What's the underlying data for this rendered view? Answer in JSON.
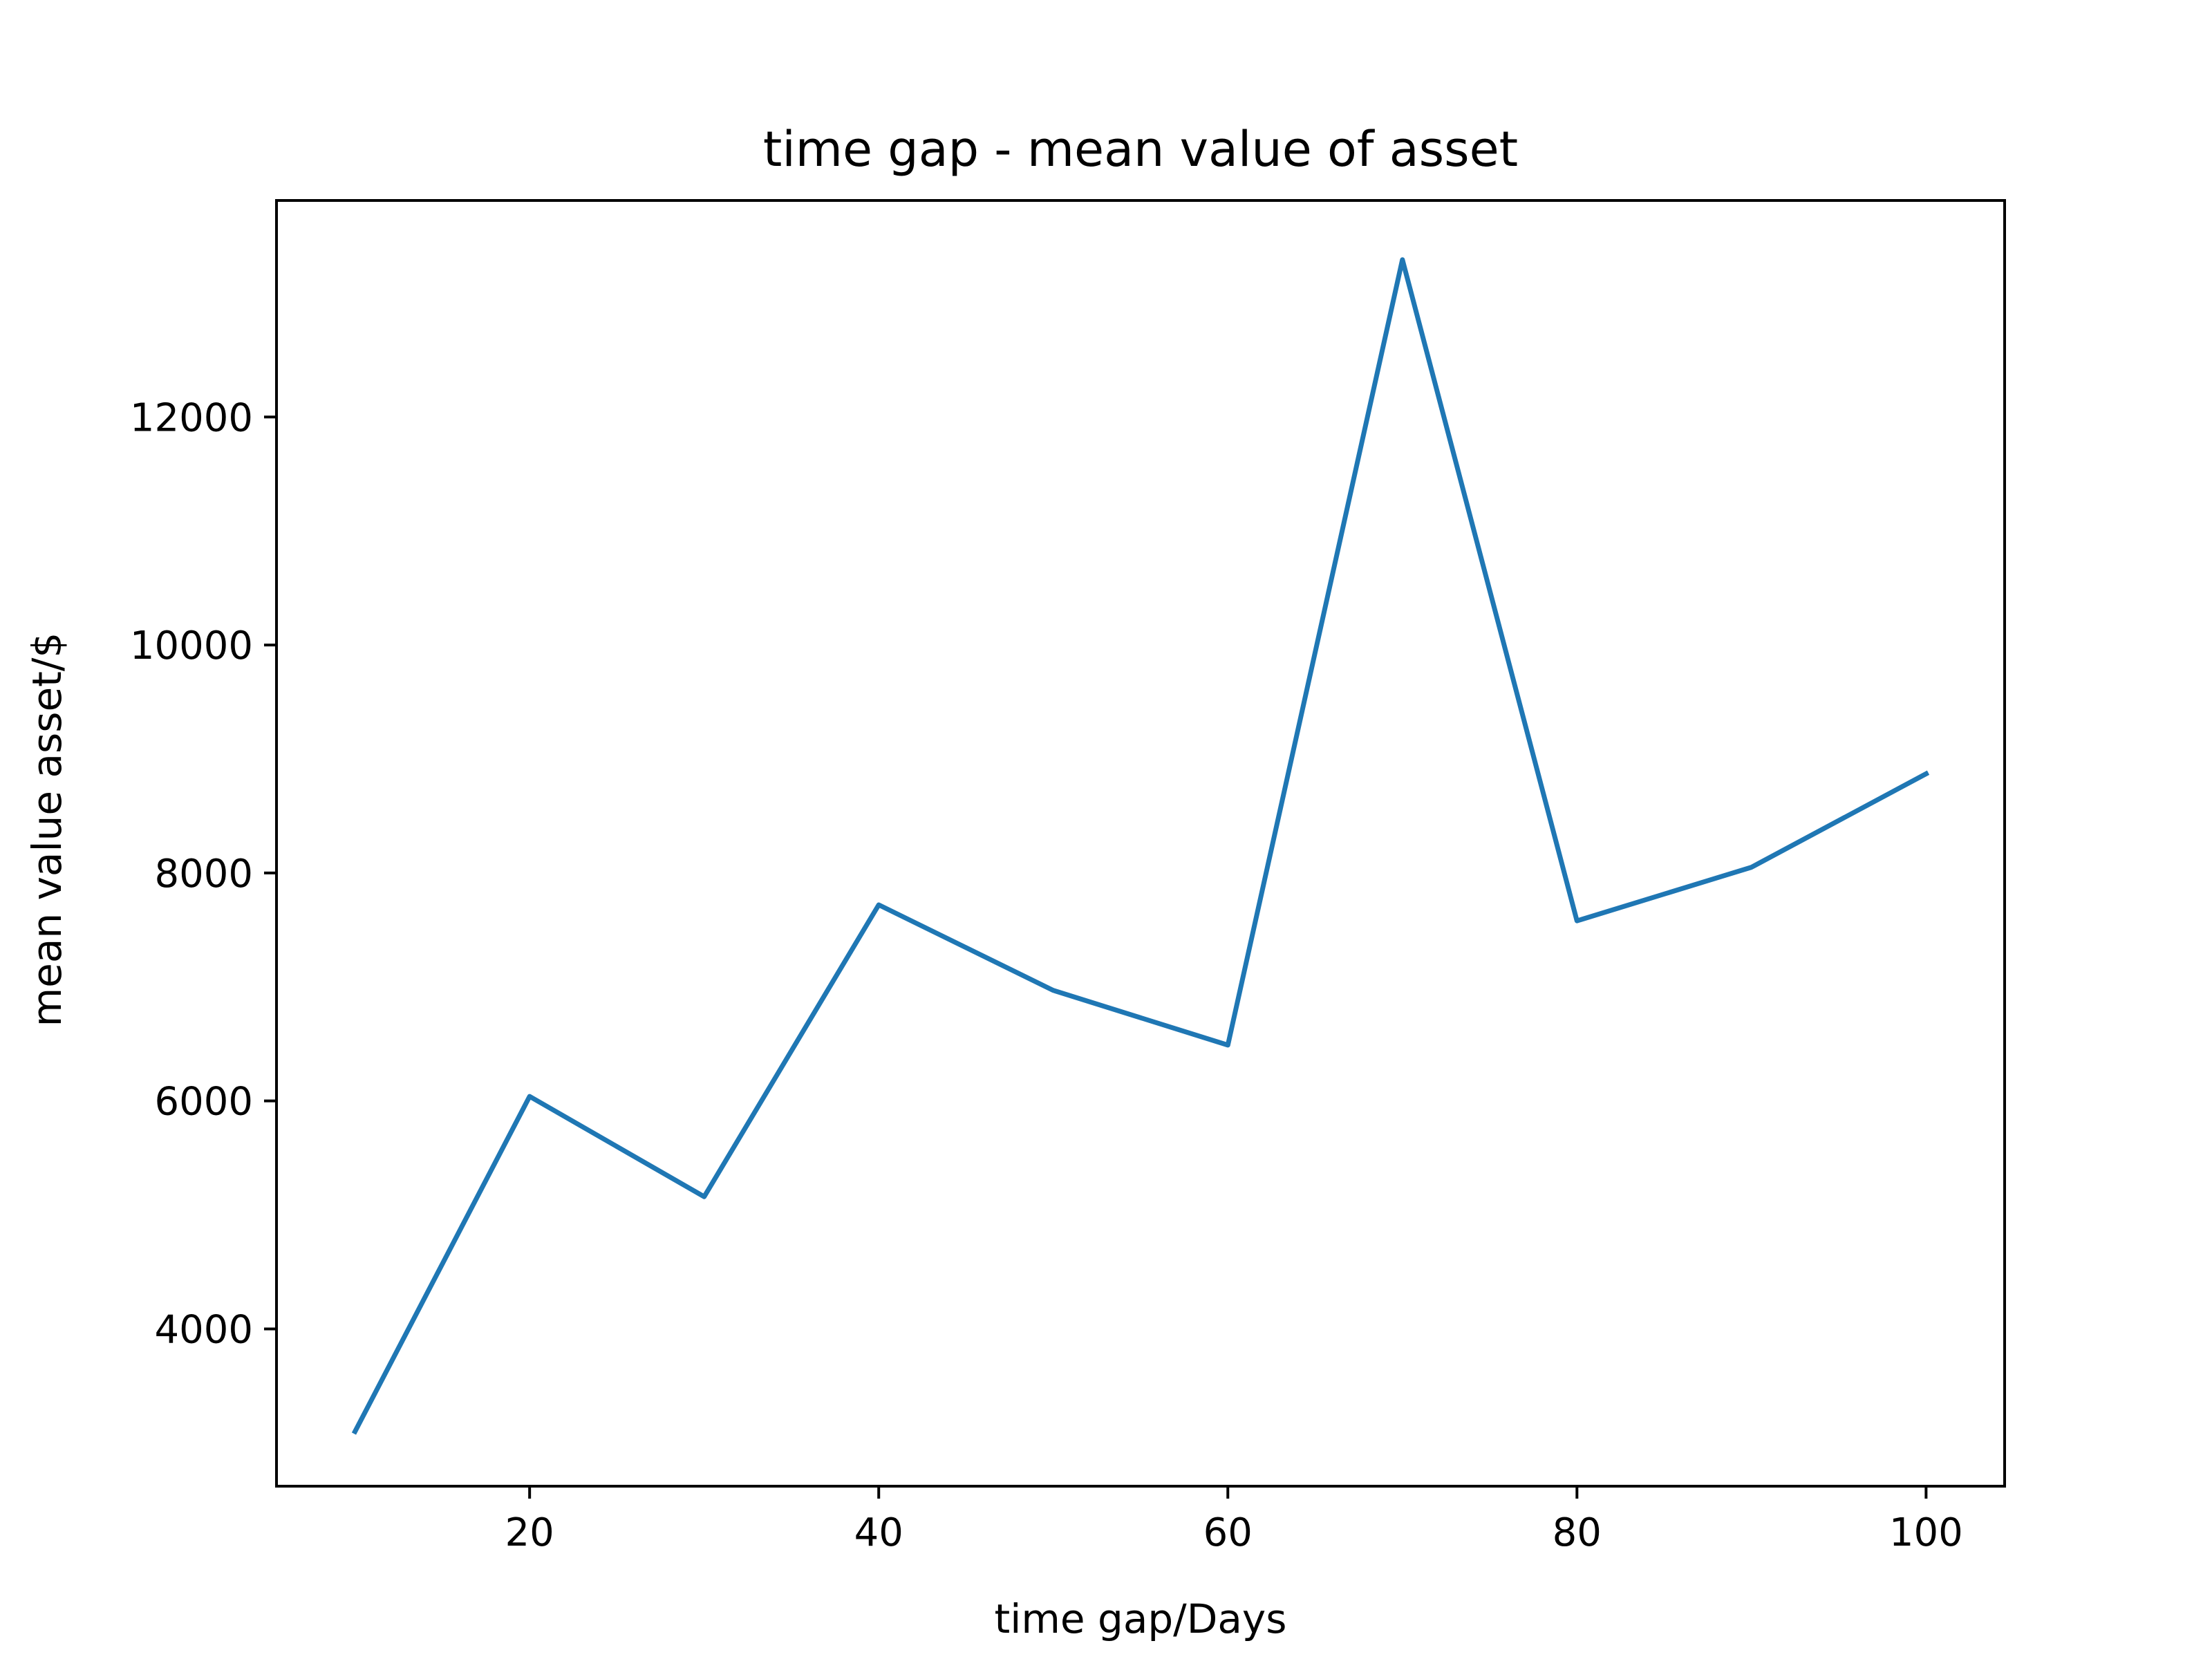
{
  "chart_data": {
    "type": "line",
    "title": "time gap - mean value of asset",
    "xlabel": "time gap/Days",
    "ylabel": "mean value asset/$",
    "x": [
      10,
      20,
      30,
      40,
      50,
      60,
      70,
      80,
      90,
      100
    ],
    "series": [
      {
        "values": [
          3100,
          6040,
          5160,
          7720,
          6970,
          6490,
          13380,
          7580,
          8050,
          8870
        ]
      }
    ],
    "xlim": [
      5.5,
      104.5
    ],
    "ylim": [
      2620,
      13900
    ],
    "xticks": [
      20,
      40,
      60,
      80,
      100
    ],
    "yticks": [
      4000,
      6000,
      8000,
      10000,
      12000
    ],
    "xtick_labels": [
      "20",
      "40",
      "60",
      "80",
      "100"
    ],
    "ytick_labels": [
      "4000",
      "6000",
      "8000",
      "10000",
      "12000"
    ],
    "grid": false,
    "legend": "none",
    "line_color": "#1f77b4",
    "frame_color": "#000000"
  }
}
